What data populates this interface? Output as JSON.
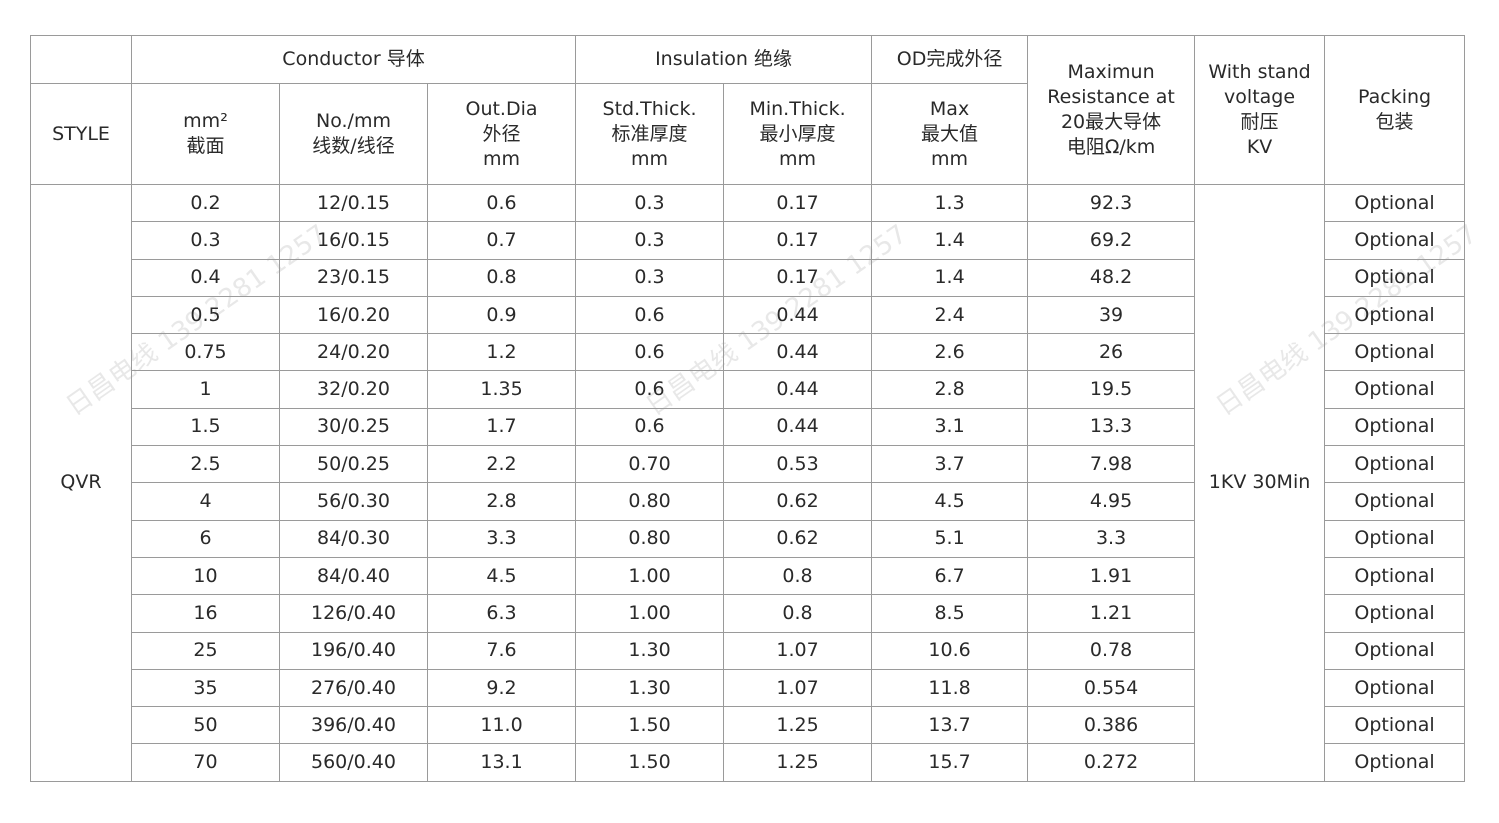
{
  "header": {
    "style": "STYLE",
    "conductor": "Conductor 导体",
    "insulation": "Insulation 绝缘",
    "od": "OD完成外径",
    "resistance": [
      "Maximun",
      "Resistance at",
      "20最大导体",
      "电阻Ω/km"
    ],
    "voltage": [
      "With stand",
      "voltage",
      "耐压",
      "KV"
    ],
    "packing": [
      "Packing",
      "包装"
    ],
    "mm2": [
      "mm²",
      "截面"
    ],
    "no_mm": [
      "No./mm",
      "线数/线径"
    ],
    "out_dia": [
      "Out.Dia",
      "外径",
      "mm"
    ],
    "std_thick": [
      "Std.Thick.",
      "标准厚度",
      "mm"
    ],
    "min_thick": [
      "Min.Thick.",
      "最小厚度",
      "mm"
    ],
    "max": [
      "Max",
      "最大值",
      "mm"
    ]
  },
  "style_value": "QVR",
  "voltage_value": "1KV 30Min",
  "rows": [
    [
      "0.2",
      "12/0.15",
      "0.6",
      "0.3",
      "0.17",
      "1.3",
      "92.3",
      "Optional"
    ],
    [
      "0.3",
      "16/0.15",
      "0.7",
      "0.3",
      "0.17",
      "1.4",
      "69.2",
      "Optional"
    ],
    [
      "0.4",
      "23/0.15",
      "0.8",
      "0.3",
      "0.17",
      "1.4",
      "48.2",
      "Optional"
    ],
    [
      "0.5",
      "16/0.20",
      "0.9",
      "0.6",
      "0.44",
      "2.4",
      "39",
      "Optional"
    ],
    [
      "0.75",
      "24/0.20",
      "1.2",
      "0.6",
      "0.44",
      "2.6",
      "26",
      "Optional"
    ],
    [
      "1",
      "32/0.20",
      "1.35",
      "0.6",
      "0.44",
      "2.8",
      "19.5",
      "Optional"
    ],
    [
      "1.5",
      "30/0.25",
      "1.7",
      "0.6",
      "0.44",
      "3.1",
      "13.3",
      "Optional"
    ],
    [
      "2.5",
      "50/0.25",
      "2.2",
      "0.70",
      "0.53",
      "3.7",
      "7.98",
      "Optional"
    ],
    [
      "4",
      "56/0.30",
      "2.8",
      "0.80",
      "0.62",
      "4.5",
      "4.95",
      "Optional"
    ],
    [
      "6",
      "84/0.30",
      "3.3",
      "0.80",
      "0.62",
      "5.1",
      "3.3",
      "Optional"
    ],
    [
      "10",
      "84/0.40",
      "4.5",
      "1.00",
      "0.8",
      "6.7",
      "1.91",
      "Optional"
    ],
    [
      "16",
      "126/0.40",
      "6.3",
      "1.00",
      "0.8",
      "8.5",
      "1.21",
      "Optional"
    ],
    [
      "25",
      "196/0.40",
      "7.6",
      "1.30",
      "1.07",
      "10.6",
      "0.78",
      "Optional"
    ],
    [
      "35",
      "276/0.40",
      "9.2",
      "1.30",
      "1.07",
      "11.8",
      "0.554",
      "Optional"
    ],
    [
      "50",
      "396/0.40",
      "11.0",
      "1.50",
      "1.25",
      "13.7",
      "0.386",
      "Optional"
    ],
    [
      "70",
      "560/0.40",
      "13.1",
      "1.50",
      "1.25",
      "15.7",
      "0.272",
      "Optional"
    ]
  ],
  "watermark": "日昌电线 139 2281 1257"
}
